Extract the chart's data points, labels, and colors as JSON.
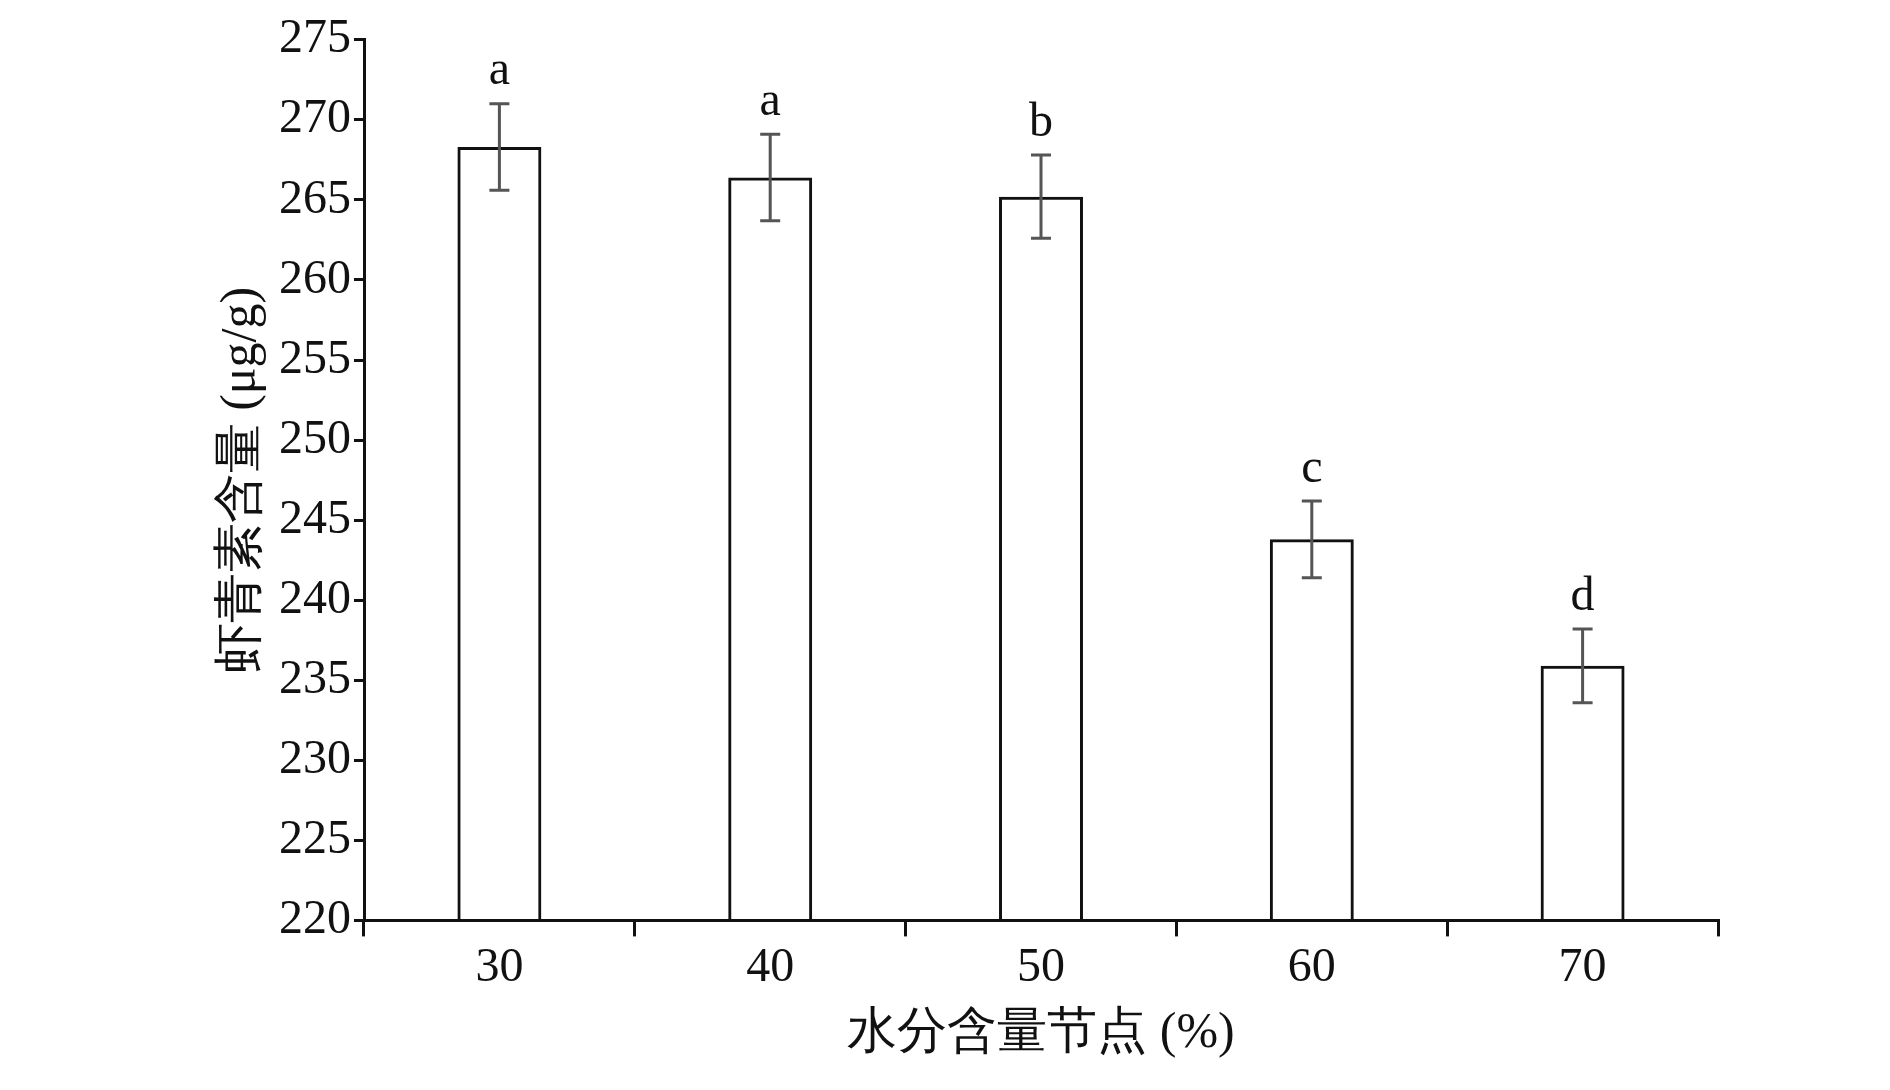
{
  "chart_data": {
    "type": "bar",
    "xlabel": "水分含量节点 (%)",
    "ylabel": "虾青素含量 (μg/g)",
    "categories": [
      "30",
      "40",
      "50",
      "60",
      "70"
    ],
    "values": [
      268.3,
      266.4,
      265.2,
      243.8,
      235.9
    ],
    "errors": [
      2.7,
      2.7,
      2.6,
      2.4,
      2.3
    ],
    "color": "#111111",
    "ylim": [
      220,
      275
    ],
    "yticks": [
      220,
      225,
      230,
      235,
      240,
      245,
      250,
      255,
      260,
      265,
      270,
      275
    ],
    "annotations": [
      {
        "text": "a",
        "x": "30",
        "y": 271.0
      },
      {
        "text": "a",
        "x": "40",
        "y": 269.1
      },
      {
        "text": "b",
        "x": "50",
        "y": 267.8
      },
      {
        "text": "c",
        "x": "60",
        "y": 246.2
      },
      {
        "text": "d",
        "x": "70",
        "y": 238.2
      }
    ]
  }
}
